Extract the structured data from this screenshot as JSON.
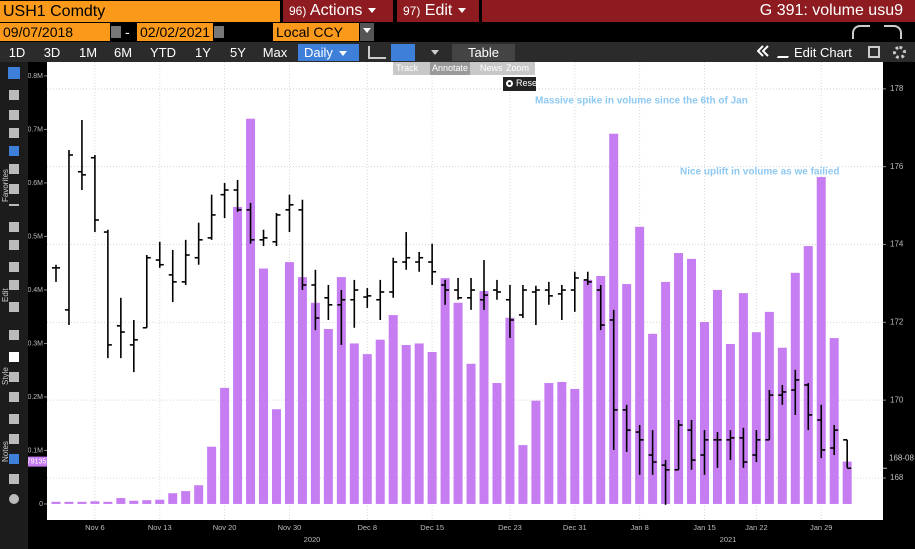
{
  "ui": {
    "ticker": "USH1 Comdty",
    "menus": [
      {
        "number": "96)",
        "label": "Actions"
      },
      {
        "number": "97)",
        "label": "Edit"
      }
    ],
    "page_title": "G 391: volume usu9",
    "start_date": "09/07/2018",
    "date_separator": "-",
    "end_date": "02/02/2021",
    "currency": "Local CCY",
    "periods": [
      "1D",
      "3D",
      "1M",
      "6M",
      "YTD",
      "1Y",
      "5Y",
      "Max"
    ],
    "frequency": "Daily",
    "table": "Table",
    "edit_chart": "Edit Chart",
    "chart_tools": [
      "Track",
      "Annotate",
      "News",
      "Zoom"
    ],
    "reset": "Reset",
    "side_labels": [
      "Favorites",
      "Edit",
      "Style",
      "Notes"
    ]
  },
  "chart_data": {
    "type": "bar",
    "categories": [
      null,
      null,
      null,
      "Nov 6",
      null,
      null,
      null,
      null,
      "Nov 13",
      null,
      null,
      null,
      null,
      "Nov 20",
      null,
      null,
      null,
      null,
      "Nov 30",
      null,
      null,
      null,
      null,
      null,
      "Dec 8",
      null,
      null,
      null,
      null,
      "Dec 15",
      null,
      null,
      null,
      null,
      null,
      "Dec 23",
      null,
      null,
      null,
      null,
      "Dec 31",
      null,
      null,
      null,
      null,
      "Jan 8",
      null,
      null,
      null,
      null,
      "Jan 15",
      null,
      null,
      null,
      "Jan 22",
      null,
      null,
      null,
      null,
      "Jan 29",
      null,
      null
    ],
    "years": [
      "2020",
      "2021"
    ],
    "annotations": [
      "Massive spike in volume since the 6th of Jan",
      "Nice uplift in volume as we failied"
    ],
    "series": [
      {
        "type": "bar",
        "color": "#c77df2",
        "values": [
          4000,
          4000,
          4000,
          5000,
          4000,
          11000,
          6000,
          7000,
          8000,
          20000,
          24000,
          35000,
          107000,
          217000,
          555000,
          720000,
          440000,
          177000,
          452000,
          424000,
          376000,
          327000,
          424000,
          300000,
          280000,
          307000,
          353000,
          297000,
          300000,
          284000,
          422000,
          376000,
          262000,
          398000,
          226000,
          348000,
          110000,
          193000,
          226000,
          228000,
          215000,
          419000,
          426000,
          692000,
          411000,
          518000,
          318000,
          415000,
          469000,
          458000,
          340000,
          400000,
          299000,
          394000,
          321000,
          359000,
          292000,
          432000,
          482000,
          611000,
          310000,
          79135
        ]
      },
      {
        "type": "ohlc",
        "axis": "y2",
        "color": "#000000",
        "open": [
          173.4,
          172.32,
          175.87,
          176.23,
          174.32,
          171.91,
          171.42,
          171.86,
          173.6,
          173.22,
          173.04,
          173.66,
          174.17,
          175.28,
          175.4,
          174.89,
          174.12,
          174.07,
          174.89,
          174.89,
          172.96,
          172.63,
          172.45,
          172.58,
          172.65,
          172.58,
          172.78,
          173.55,
          173.55,
          173.55,
          172.96,
          172.83,
          172.63,
          172.58,
          172.83,
          172.58,
          172.19,
          172.78,
          172.83,
          172.73,
          172.83,
          173.09,
          172.83,
          172.06,
          169.75,
          169.18,
          168.59,
          168.33,
          168.21,
          169.23,
          168.59,
          168.98,
          168.98,
          169.03,
          168.59,
          168.98,
          170.13,
          170.26,
          170.39,
          169.49,
          168.77,
          168.98
        ],
        "high": [
          173.48,
          176.43,
          177.2,
          176.3,
          174.38,
          172.63,
          172.06,
          173.73,
          174.07,
          173.86,
          174.12,
          174.56,
          175.28,
          175.58,
          175.66,
          175.07,
          174.38,
          174.81,
          175.28,
          175.15,
          173.35,
          172.96,
          172.83,
          173.09,
          172.88,
          173.09,
          173.66,
          174.32,
          173.81,
          174.02,
          173.09,
          173.14,
          173.14,
          173.6,
          173.09,
          172.96,
          172.96,
          172.94,
          173.04,
          172.96,
          173.3,
          173.3,
          172.96,
          172.32,
          169.88,
          169.36,
          169.23,
          168.46,
          169.49,
          169.49,
          169.23,
          169.18,
          169.23,
          169.29,
          169.23,
          170.26,
          170.39,
          170.78,
          170.44,
          169.88,
          169.36,
          168.98
        ],
        "low": [
          173.04,
          171.93,
          175.4,
          174.32,
          171.08,
          171.08,
          170.72,
          171.86,
          173.4,
          172.52,
          172.96,
          173.48,
          174.12,
          174.68,
          174.84,
          174.02,
          173.96,
          173.96,
          174.32,
          172.83,
          171.8,
          172.06,
          171.42,
          171.86,
          172.37,
          172.06,
          172.63,
          173.35,
          173.3,
          172.96,
          172.45,
          172.58,
          172.32,
          172.32,
          172.58,
          171.6,
          172.11,
          171.93,
          172.45,
          172.06,
          172.27,
          172.96,
          171.8,
          168.72,
          168.67,
          168.08,
          168.08,
          167.31,
          168.21,
          168.21,
          168.08,
          168.26,
          168.46,
          168.26,
          168.41,
          168.98,
          169.88,
          169.62,
          169.23,
          168.51,
          168.59,
          168.26
        ],
        "close": [
          173.4,
          176.3,
          175.79,
          174.63,
          171.42,
          171.75,
          171.55,
          173.66,
          173.48,
          173.04,
          173.73,
          174.12,
          174.76,
          175.4,
          174.89,
          174.12,
          174.17,
          174.76,
          175.02,
          172.96,
          172.11,
          172.45,
          172.58,
          172.83,
          172.68,
          172.78,
          173.55,
          173.66,
          173.66,
          173.3,
          172.83,
          172.63,
          172.83,
          172.7,
          172.78,
          172.06,
          172.83,
          172.83,
          172.68,
          172.83,
          173.14,
          173.04,
          171.93,
          169.75,
          169.23,
          168.98,
          168.41,
          168.21,
          169.36,
          168.46,
          168.98,
          168.98,
          169.03,
          168.41,
          168.98,
          170.13,
          170.21,
          170.52,
          169.62,
          168.72,
          169.23,
          168.25
        ]
      }
    ],
    "last_price": {
      "value": 168.25,
      "label": "168-08"
    },
    "ylim": [
      -30000,
      826000
    ],
    "yticks": [
      0,
      {
        "value": 100000,
        "label": "0.1M"
      },
      {
        "value": 200000,
        "label": "0.2M"
      },
      {
        "value": 300000,
        "label": "0.3M"
      },
      {
        "value": 400000,
        "label": "0.4M"
      },
      {
        "value": 500000,
        "label": "0.5M"
      },
      {
        "value": 600000,
        "label": "0.6M"
      },
      {
        "value": 700000,
        "label": "0.7M"
      },
      {
        "value": 800000,
        "label": "0.8M"
      }
    ],
    "y2lim": [
      166.92,
      178.69
    ],
    "y2ticks": [
      168,
      170,
      172,
      174,
      176,
      178
    ],
    "grid": true
  }
}
